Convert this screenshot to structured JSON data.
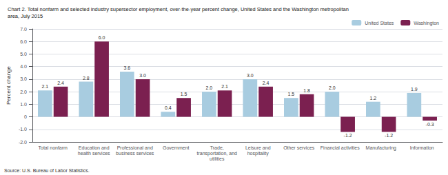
{
  "chart_data": {
    "type": "bar",
    "title": "Chart 2. Total nonfarm and selected industry supersector employment, over-the-year percent change, United States and the Washington metropolitan\narea, July 2015",
    "ylabel": "Percent change",
    "annotations": [
      "Source: U.S. Bureau of Labor Statistics."
    ],
    "categories": [
      "Total nonfarm",
      "Education and\nhealth services",
      "Professional and\nbusiness services",
      "Government",
      "Trade,\ntransportation, and\nutilities",
      "Leisure and\nhospitality",
      "Other services",
      "Financial activities",
      "Manufacturing",
      "Information"
    ],
    "series": [
      {
        "name": "United States",
        "color": "#a8cce0",
        "values": [
          2.1,
          2.8,
          3.6,
          0.4,
          2.0,
          3.0,
          1.5,
          2.0,
          1.2,
          1.9
        ],
        "value_labels": [
          "2.1",
          "2.8",
          "3.6",
          "0.4",
          "2.0",
          "3.0",
          "1.5",
          "2.0",
          "1.2",
          "1.9"
        ]
      },
      {
        "name": "Washington",
        "color": "#7b2050",
        "values": [
          2.4,
          6.0,
          3.0,
          1.5,
          2.1,
          2.4,
          1.8,
          -1.2,
          -1.2,
          -0.3
        ],
        "value_labels": [
          "2.4",
          "6.0",
          "3.0",
          "1.5",
          "2.1",
          "2.4",
          "1.8",
          "-1.2",
          "-1.2",
          "-0.3"
        ]
      }
    ],
    "ylim": [
      -2.0,
      7.0
    ],
    "yticks": [
      {
        "value": -2.0,
        "label": "-2.0"
      },
      {
        "value": -1.0,
        "label": "-1.0"
      },
      0,
      {
        "value": 1.0,
        "label": "1.0"
      },
      {
        "value": 2.0,
        "label": "2.0"
      },
      {
        "value": 3.0,
        "label": "3.0"
      },
      {
        "value": 4.0,
        "label": "4.0"
      },
      {
        "value": 5.0,
        "label": "5.0"
      },
      {
        "value": 6.0,
        "label": "6.0"
      },
      {
        "value": 7.0,
        "label": "7.0"
      }
    ],
    "grid": true,
    "legend": "upper right",
    "data_labels": true
  }
}
